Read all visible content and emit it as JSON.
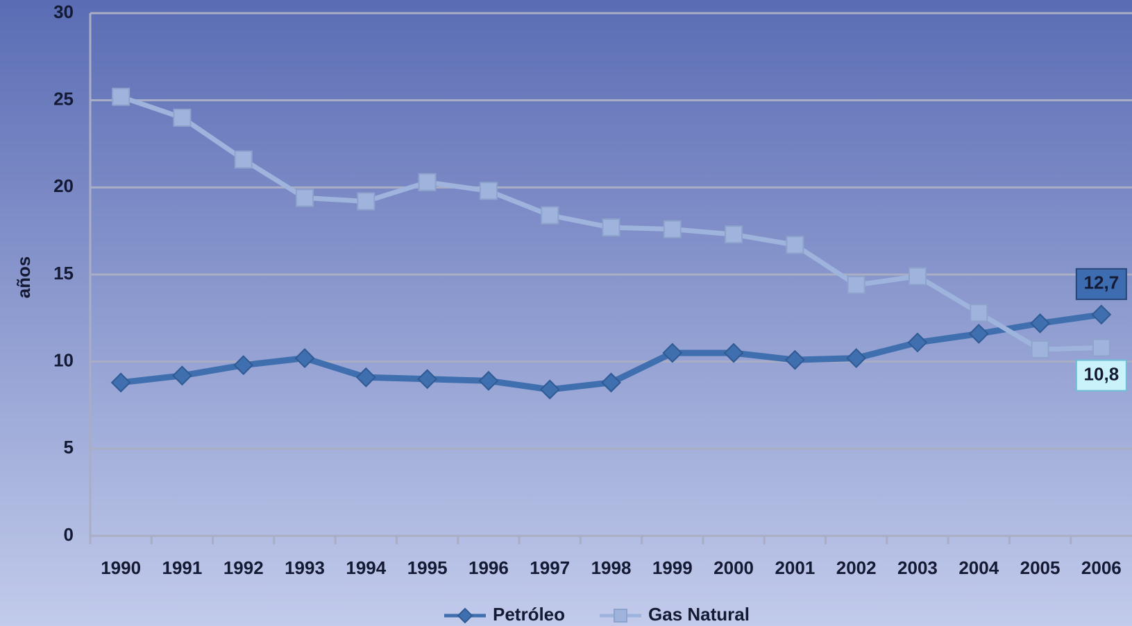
{
  "chart_data": {
    "type": "line",
    "y_label": "años",
    "categories": [
      "1990",
      "1991",
      "1992",
      "1993",
      "1994",
      "1995",
      "1996",
      "1997",
      "1998",
      "1999",
      "2000",
      "2001",
      "2002",
      "2003",
      "2004",
      "2005",
      "2006"
    ],
    "series": [
      {
        "name": "Petróleo",
        "color": "#3f6fae",
        "marker": "diamond",
        "values": [
          8.8,
          9.2,
          9.8,
          10.2,
          9.1,
          9.0,
          8.9,
          8.4,
          8.8,
          10.5,
          10.5,
          10.1,
          10.2,
          11.1,
          11.6,
          12.2,
          12.7
        ],
        "value_labels": [
          null,
          null,
          null,
          null,
          null,
          null,
          null,
          null,
          null,
          null,
          null,
          null,
          null,
          null,
          null,
          null,
          "12,7"
        ]
      },
      {
        "name": "Gas Natural",
        "color": "#9fb4dc",
        "marker": "square",
        "values": [
          25.2,
          24.0,
          21.6,
          19.4,
          19.2,
          20.3,
          19.8,
          18.4,
          17.7,
          17.6,
          17.3,
          16.7,
          14.4,
          14.9,
          12.8,
          10.7,
          10.8
        ],
        "value_labels": [
          null,
          null,
          null,
          null,
          null,
          null,
          null,
          null,
          null,
          null,
          null,
          null,
          null,
          null,
          null,
          null,
          "10,8"
        ]
      }
    ],
    "ylim": [
      0,
      30
    ],
    "yticks": [
      0,
      5,
      10,
      15,
      20,
      25,
      30
    ],
    "grid": true,
    "legend": "bottom"
  }
}
